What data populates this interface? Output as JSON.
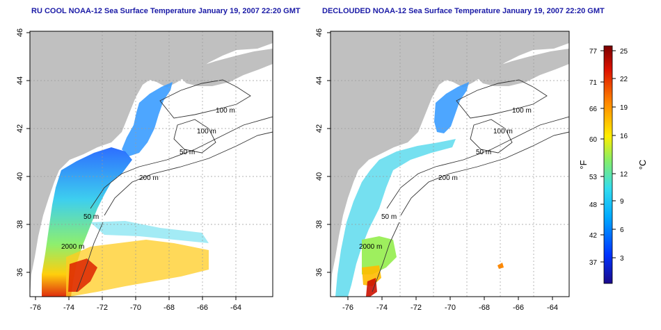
{
  "left_panel": {
    "title": "RU COOL NOAA-12 Sea Surface Temperature January 19, 2007 22:20 GMT",
    "contour_labels": [
      "100 m",
      "100 m",
      "50 m",
      "200 m",
      "50 m",
      "2000 m"
    ]
  },
  "right_panel": {
    "title": "DECLOUDED NOAA-12 Sea Surface Temperature January 19, 2007 22:20 GMT",
    "contour_labels": [
      "100 m",
      "100 m",
      "50 m",
      "200 m",
      "50 m",
      "2000 m"
    ]
  },
  "axes": {
    "lat_ticks": [
      "36",
      "38",
      "40",
      "42",
      "44",
      "46"
    ],
    "lon_ticks": [
      "-76",
      "-74",
      "-72",
      "-70",
      "-68",
      "-66",
      "-64"
    ]
  },
  "colorbar": {
    "fahrenheit_label": "°F",
    "celsius_label": "°C",
    "fahrenheit_ticks": [
      "37",
      "42",
      "48",
      "53",
      "60",
      "66",
      "71",
      "77"
    ],
    "celsius_ticks": [
      "3",
      "6",
      "9",
      "12",
      "16",
      "19",
      "22",
      "25"
    ],
    "colors": [
      "#1a0a8a",
      "#0033ff",
      "#00aaff",
      "#33ddee",
      "#88ee66",
      "#ffee00",
      "#ff8800",
      "#dd1100",
      "#7a0000"
    ]
  },
  "colors": {
    "land": "#c0c0c0",
    "ocean": "#ffffff",
    "title": "#1a1aa6"
  }
}
